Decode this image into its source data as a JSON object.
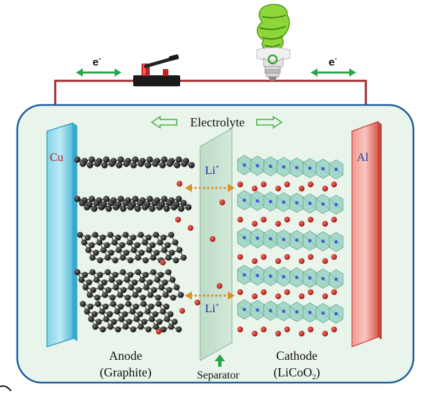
{
  "electron_left": "e",
  "electron_right": "e",
  "electron_superscript": "-",
  "electrolyte_label": "Electrolyte",
  "anode_collector": "Cu",
  "cathode_collector": "Al",
  "li_top": "Li",
  "li_bottom": "Li",
  "ion_superscript": "+",
  "anode_label": "Anode",
  "anode_material": "(Graphite)",
  "separator_label": "Separator",
  "cathode_label": "Cathode",
  "cathode_material_prefix": "(LiCoO",
  "cathode_material_sub": "2",
  "cathode_material_suffix": ")",
  "colors": {
    "wire": "#a0282c",
    "container_fill": "#e9f4ea",
    "container_stroke": "#1a5c9c",
    "arrow_green": "#2aa64a",
    "li_arrow": "#d8902a",
    "li_ion": "#b01818",
    "cathode_poly": "#9fd6c6",
    "co_atom": "#3e5fd6",
    "carbon": "#141414"
  },
  "icons": [
    "switch-icon",
    "light-bulb-icon",
    "electron-flow-arrow-icon",
    "electrolyte-arrow-icon",
    "separator-up-arrow-icon"
  ]
}
